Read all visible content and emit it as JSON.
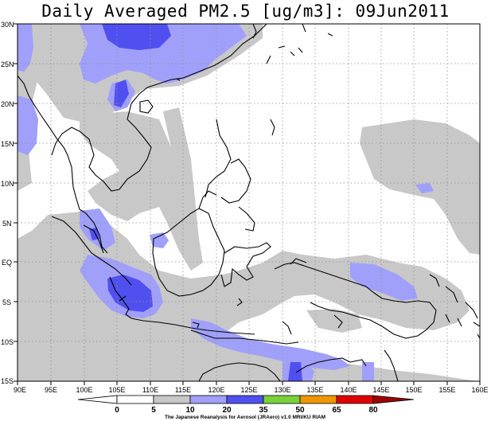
{
  "title": "Daily Averaged PM2.5 [ug/m3]: 09Jun2011",
  "map": {
    "lon_labels": [
      "90E",
      "95E",
      "100E",
      "105E",
      "110E",
      "115E",
      "120E",
      "125E",
      "130E",
      "135E",
      "140E",
      "145E",
      "150E",
      "155E",
      "160E"
    ],
    "lat_labels": [
      "30N",
      "25N",
      "20N",
      "15N",
      "10N",
      "5N",
      "EQ",
      "5S",
      "10S",
      "15S"
    ],
    "lon_range": [
      90,
      160
    ],
    "lat_range": [
      -15,
      30
    ],
    "grid": "dotted"
  },
  "colorbar": {
    "labels": [
      "0",
      "5",
      "10",
      "20",
      "35",
      "50",
      "65",
      "80"
    ],
    "colors": [
      "#ffffff",
      "#ffffff",
      "#c8c8c8",
      "#a0a0fa",
      "#5050f0",
      "#7ad23a",
      "#f09600",
      "#e00000",
      "#a00000"
    ]
  },
  "credit": "The Japanese Reanalysis for Aerosol (JRAero) v1.0 MRI/KU RIAM"
}
